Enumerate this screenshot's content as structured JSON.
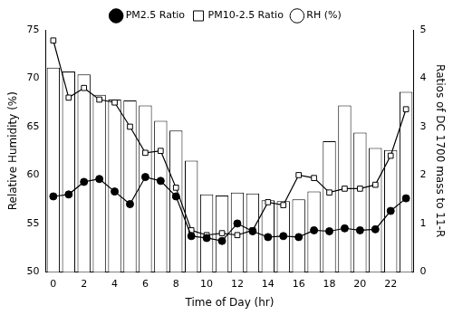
{
  "chart_data": {
    "type": "bar",
    "x_label": "Time of Day (hr)",
    "y_label": "Relative Humidity (%)",
    "y2_label": "Ratios of DC 1700 mass to 11-R",
    "x": [
      0,
      1,
      2,
      3,
      4,
      5,
      6,
      7,
      8,
      9,
      10,
      11,
      12,
      13,
      14,
      15,
      16,
      17,
      18,
      19,
      20,
      21,
      22,
      23
    ],
    "xlim": [
      -0.5,
      23.5
    ],
    "xticks": [
      0,
      2,
      4,
      6,
      8,
      10,
      12,
      14,
      16,
      18,
      20,
      22
    ],
    "ylim": [
      50,
      75
    ],
    "yticks": [
      50,
      55,
      60,
      65,
      70,
      75
    ],
    "y2lim": [
      0,
      5
    ],
    "y2ticks": [
      0,
      1,
      2,
      3,
      4,
      5
    ],
    "grid": false,
    "legend": "top",
    "series": [
      {
        "name": "RH (%)",
        "type": "bar",
        "color": "#ffffff",
        "values": [
          71.1,
          70.7,
          70.4,
          68.3,
          67.8,
          67.7,
          67.2,
          65.6,
          64.6,
          61.5,
          58.0,
          57.9,
          58.2,
          58.1,
          57.4,
          57.3,
          57.5,
          58.3,
          63.5,
          67.2,
          64.4,
          62.8,
          62.6,
          68.6
        ]
      },
      {
        "name": "PM2.5 Ratio",
        "type": "line",
        "axis": "y2",
        "color": "#000000",
        "marker": "circle",
        "line_style": "solid",
        "values": [
          1.56,
          1.6,
          1.86,
          1.92,
          1.66,
          1.4,
          1.96,
          1.88,
          1.56,
          0.74,
          0.7,
          0.64,
          1.0,
          0.84,
          0.72,
          0.74,
          0.72,
          0.86,
          0.84,
          0.9,
          0.86,
          0.88,
          1.26,
          1.52
        ]
      },
      {
        "name": "PM10-2.5 Ratio",
        "type": "line",
        "axis": "y2",
        "color": "#000000",
        "marker": "open_square",
        "line_style": "solid",
        "values": [
          4.78,
          3.6,
          3.8,
          3.56,
          3.5,
          3.0,
          2.46,
          2.5,
          1.74,
          0.86,
          0.76,
          0.8,
          0.76,
          0.86,
          1.44,
          1.38,
          2.0,
          1.94,
          1.64,
          1.72,
          1.72,
          1.8,
          2.4,
          3.36
        ]
      }
    ]
  }
}
